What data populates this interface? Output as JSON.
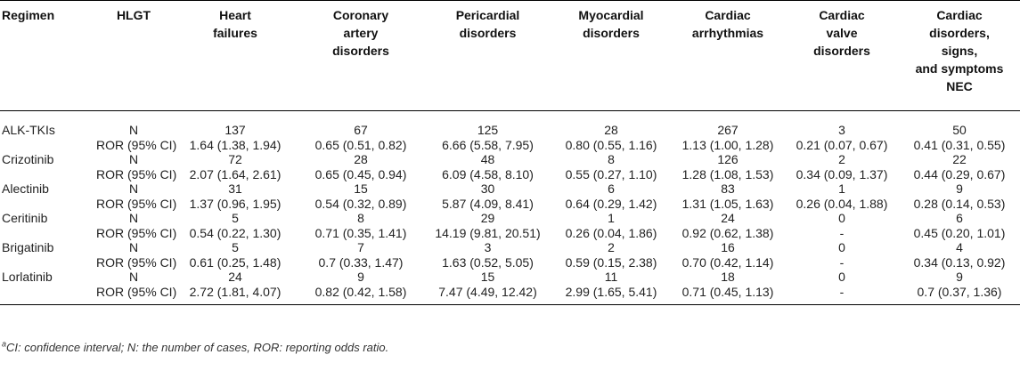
{
  "headers": [
    "Regimen",
    "HLGT",
    "Heart\nfailures",
    "Coronary\nartery\ndisorders",
    "Pericardial\ndisorders",
    "Myocardial\ndisorders",
    "Cardiac\narrhythmias",
    "Cardiac\nvalve\ndisorders",
    "Cardiac\ndisorders,\nsigns,\nand symptoms\nNEC"
  ],
  "rows": [
    {
      "regimen": "ALK-TKIs",
      "n_label": "N",
      "n": [
        "137",
        "67",
        "125",
        "28",
        "267",
        "3",
        "50"
      ],
      "ror_label": "ROR (95% CI)",
      "ror": [
        "1.64 (1.38, 1.94)",
        "0.65 (0.51, 0.82)",
        "6.66 (5.58, 7.95)",
        "0.80 (0.55, 1.16)",
        "1.13 (1.00, 1.28)",
        "0.21 (0.07, 0.67)",
        "0.41 (0.31, 0.55)"
      ]
    },
    {
      "regimen": "Crizotinib",
      "n_label": "N",
      "n": [
        "72",
        "28",
        "48",
        "8",
        "126",
        "2",
        "22"
      ],
      "ror_label": "ROR (95% CI)",
      "ror": [
        "2.07 (1.64, 2.61)",
        "0.65 (0.45, 0.94)",
        "6.09 (4.58, 8.10)",
        "0.55 (0.27, 1.10)",
        "1.28 (1.08, 1.53)",
        "0.34 (0.09, 1.37)",
        "0.44 (0.29, 0.67)"
      ]
    },
    {
      "regimen": "Alectinib",
      "n_label": "N",
      "n": [
        "31",
        "15",
        "30",
        "6",
        "83",
        "1",
        "9"
      ],
      "ror_label": "ROR (95% CI)",
      "ror": [
        "1.37 (0.96, 1.95)",
        "0.54 (0.32, 0.89)",
        "5.87 (4.09, 8.41)",
        "0.64 (0.29, 1.42)",
        "1.31 (1.05, 1.63)",
        "0.26 (0.04, 1.88)",
        "0.28 (0.14, 0.53)"
      ]
    },
    {
      "regimen": "Ceritinib",
      "n_label": "N",
      "n": [
        "5",
        "8",
        "29",
        "1",
        "24",
        "0",
        "6"
      ],
      "ror_label": "ROR (95% CI)",
      "ror": [
        "0.54 (0.22, 1.30)",
        "0.71 (0.35, 1.41)",
        "14.19 (9.81, 20.51)",
        "0.26 (0.04, 1.86)",
        "0.92 (0.62, 1.38)",
        "-",
        "0.45 (0.20, 1.01)"
      ]
    },
    {
      "regimen": "Brigatinib",
      "n_label": "N",
      "n": [
        "5",
        "7",
        "3",
        "2",
        "16",
        "0",
        "4"
      ],
      "ror_label": "ROR (95% CI)",
      "ror": [
        "0.61 (0.25, 1.48)",
        "0.7 (0.33, 1.47)",
        "1.63 (0.52, 5.05)",
        "0.59 (0.15, 2.38)",
        "0.70 (0.42, 1.14)",
        "-",
        "0.34 (0.13, 0.92)"
      ]
    },
    {
      "regimen": "Lorlatinib",
      "n_label": "N",
      "n": [
        "24",
        "9",
        "15",
        "11",
        "18",
        "0",
        "9"
      ],
      "ror_label": "ROR (95% CI)",
      "ror": [
        "2.72 (1.81, 4.07)",
        "0.82 (0.42, 1.58)",
        "7.47 (4.49, 12.42)",
        "2.99 (1.65, 5.41)",
        "0.71 (0.45, 1.13)",
        "-",
        "0.7 (0.37, 1.36)"
      ]
    }
  ],
  "footnote": {
    "marker": "a",
    "text": "CI: confidence interval; N: the number of cases, ROR: reporting odds ratio."
  }
}
